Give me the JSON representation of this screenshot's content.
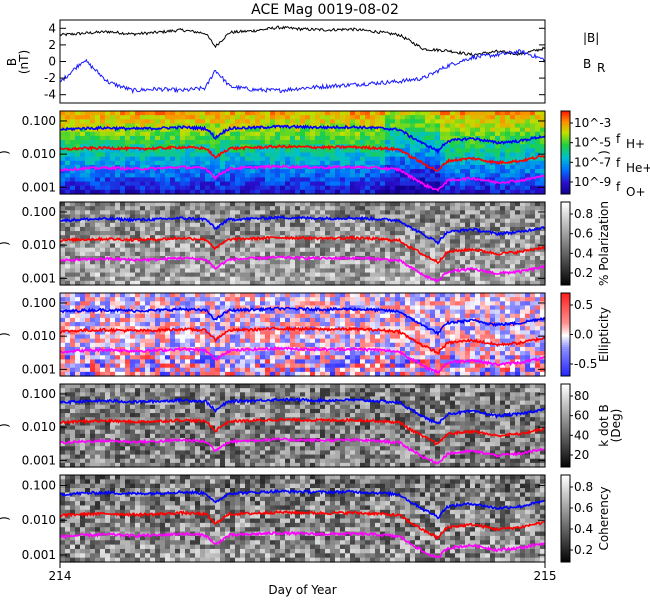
{
  "title": "ACE Mag 0019-08-02",
  "colors": {
    "total_b": "#000000",
    "br": "#1a1aff",
    "f_h": "#0000ff",
    "f_he": "#ff0000",
    "f_o": "#ff00ff",
    "bg": "#ffffff"
  },
  "legend_top": {
    "b_label": "|B|",
    "br_label": "B",
    "br_sub": "R"
  },
  "legend_freq": {
    "h_label": "f",
    "h_sub": "H+",
    "he_label": "f",
    "he_sub": "He+",
    "o_label": "f",
    "o_sub": "O+"
  },
  "xaxis": {
    "label": "Day of Year",
    "ticks": [
      "214",
      "215"
    ],
    "range": [
      214,
      215
    ]
  },
  "chart_data": [
    {
      "type": "line",
      "panel": "magnetic-field",
      "ylabel": "B",
      "yunit": "(nT)",
      "ylim": [
        -5,
        5
      ],
      "yticks": [
        "4",
        "2",
        "0",
        "-2",
        "-4"
      ],
      "x": [
        214.0,
        214.05,
        214.1,
        214.15,
        214.2,
        214.25,
        214.3,
        214.32,
        214.35,
        214.4,
        214.45,
        214.5,
        214.55,
        214.6,
        214.65,
        214.7,
        214.75,
        214.8,
        214.85,
        214.9,
        214.95,
        215.0
      ],
      "series": [
        {
          "name": "|B|",
          "values": [
            3.2,
            3.4,
            3.6,
            3.3,
            3.5,
            3.8,
            3.4,
            1.8,
            3.5,
            3.7,
            4.1,
            3.9,
            3.8,
            3.9,
            3.6,
            3.2,
            1.5,
            1.3,
            0.8,
            1.2,
            0.9,
            1.6
          ]
        },
        {
          "name": "B_R",
          "values": [
            -2.5,
            0.2,
            -2.5,
            -3.5,
            -3.3,
            -3.5,
            -3.2,
            -1.0,
            -3.0,
            -3.4,
            -3.5,
            -3.2,
            -3.0,
            -2.8,
            -2.6,
            -2.4,
            -2.0,
            -0.5,
            0.5,
            0.8,
            1.2,
            0.2
          ]
        }
      ]
    },
    {
      "type": "heatmap",
      "panel": "power",
      "yscale": "log",
      "yticks": [
        "0.100",
        "0.010",
        "0.001"
      ],
      "colorbar_ticks": [
        "10^-3",
        "10^-5",
        "10^-7",
        "10^-9"
      ],
      "colorbar_label": ")"
    },
    {
      "type": "heatmap",
      "panel": "polarization",
      "yscale": "log",
      "yticks": [
        "0.100",
        "0.010",
        "0.001"
      ],
      "colorbar_ticks": [
        "0.8",
        "0.6",
        "0.4",
        "0.2"
      ],
      "colorbar_label": "% Polarization"
    },
    {
      "type": "heatmap",
      "panel": "ellipticity",
      "yscale": "log",
      "yticks": [
        "0.100",
        "0.010",
        "0.001"
      ],
      "colorbar_ticks": [
        "0.5",
        "0.0",
        "-0.5"
      ],
      "colorbar_label": "Ellipticity"
    },
    {
      "type": "heatmap",
      "panel": "k-dot-b",
      "yscale": "log",
      "yticks": [
        "0.100",
        "0.010",
        "0.001"
      ],
      "colorbar_ticks": [
        "80",
        "60",
        "40",
        "20"
      ],
      "colorbar_label": "k dot B",
      "colorbar_unit": "(Deg)"
    },
    {
      "type": "heatmap",
      "panel": "coherency",
      "yscale": "log",
      "yticks": [
        "0.100",
        "0.010",
        "0.001"
      ],
      "colorbar_ticks": [
        "0.8",
        "0.6",
        "0.4",
        "0.2"
      ],
      "colorbar_label": "Coherency"
    }
  ],
  "gyrofrequencies": {
    "x": [
      214.0,
      214.05,
      214.1,
      214.15,
      214.2,
      214.25,
      214.3,
      214.32,
      214.35,
      214.4,
      214.45,
      214.5,
      214.55,
      214.6,
      214.65,
      214.7,
      214.72,
      214.75,
      214.78,
      214.8,
      214.85,
      214.9,
      214.95,
      215.0
    ],
    "f_h": [
      0.055,
      0.06,
      0.062,
      0.058,
      0.06,
      0.065,
      0.06,
      0.03,
      0.06,
      0.063,
      0.068,
      0.066,
      0.064,
      0.066,
      0.062,
      0.055,
      0.035,
      0.02,
      0.012,
      0.025,
      0.03,
      0.022,
      0.025,
      0.035
    ],
    "f_he": [
      0.0138,
      0.015,
      0.0155,
      0.0145,
      0.015,
      0.0163,
      0.015,
      0.0075,
      0.015,
      0.0158,
      0.017,
      0.0165,
      0.016,
      0.0165,
      0.0155,
      0.0138,
      0.0088,
      0.005,
      0.003,
      0.0063,
      0.0075,
      0.0055,
      0.0063,
      0.0088
    ],
    "f_o": [
      0.0034,
      0.0037,
      0.0039,
      0.0036,
      0.0037,
      0.0041,
      0.0037,
      0.0019,
      0.0037,
      0.004,
      0.0043,
      0.0041,
      0.004,
      0.0041,
      0.0039,
      0.0034,
      0.0022,
      0.0012,
      0.0008,
      0.0016,
      0.0019,
      0.0014,
      0.0016,
      0.0022
    ]
  }
}
